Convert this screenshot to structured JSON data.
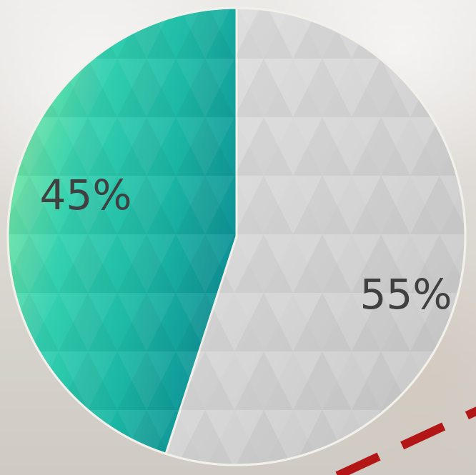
{
  "chart_data": {
    "type": "pie",
    "slices": [
      {
        "label": "45%",
        "value": 45,
        "color": "#22b6a5"
      },
      {
        "label": "55%",
        "value": 55,
        "color": "#d5d5d5"
      }
    ],
    "title": "",
    "legend": false
  },
  "colors": {
    "dashed_line": "#b31616",
    "rim": "#f2f0ea"
  }
}
